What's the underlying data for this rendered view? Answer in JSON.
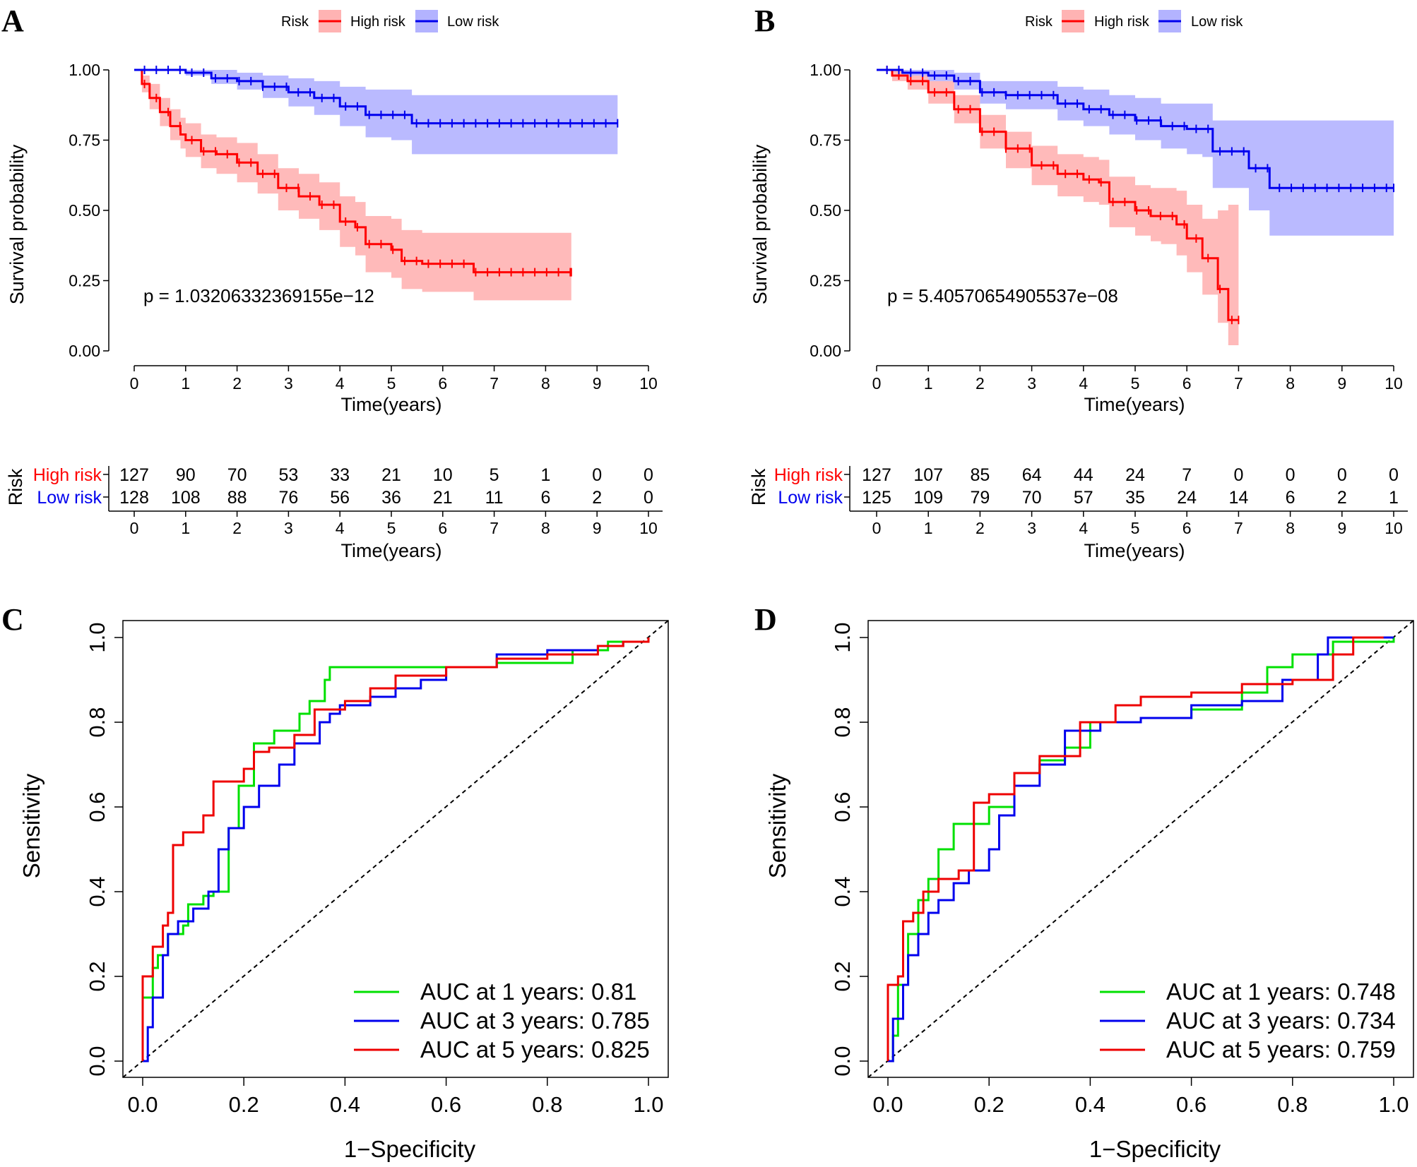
{
  "panels": {
    "A": {
      "letter": "A"
    },
    "B": {
      "letter": "B"
    },
    "C": {
      "letter": "C"
    },
    "D": {
      "letter": "D"
    }
  },
  "km_legend": {
    "title": "Risk",
    "high": "High risk",
    "low": "Low risk"
  },
  "km_axes": {
    "ylabel": "Survival probability",
    "xlabel": "Time(years)",
    "risk_ylabel": "Risk"
  },
  "roc_axes": {
    "xlabel": "1−Specificity",
    "ylabel": "Sensitivity"
  },
  "colors": {
    "high": "#ff0000",
    "low": "#0000ee",
    "high_band": "#ffb3b3",
    "low_band": "#b3b3ff",
    "green": "#00e000",
    "blue": "#0000ee",
    "red": "#ee0000"
  },
  "chart_data": [
    {
      "panel": "A",
      "type": "line",
      "subtype": "kaplan-meier",
      "xlabel": "Time(years)",
      "ylabel": "Survival probability",
      "xlim": [
        0,
        10
      ],
      "ylim": [
        0,
        1
      ],
      "x_ticks": [
        "0",
        "1",
        "2",
        "3",
        "4",
        "5",
        "6",
        "7",
        "8",
        "9",
        "10"
      ],
      "y_ticks": [
        "0.00",
        "0.25",
        "0.50",
        "0.75",
        "1.00"
      ],
      "pvalue": "p = 1.03206332369155e−12",
      "series": [
        {
          "name": "High risk",
          "color": "#ff0000",
          "x": [
            0,
            0.15,
            0.3,
            0.5,
            0.7,
            0.9,
            1.0,
            1.3,
            1.6,
            2.0,
            2.4,
            2.8,
            3.2,
            3.6,
            4.0,
            4.3,
            4.5,
            5.0,
            5.2,
            5.6,
            6.0,
            6.5,
            6.6,
            8.5
          ],
          "y": [
            1.0,
            0.95,
            0.9,
            0.85,
            0.8,
            0.77,
            0.75,
            0.71,
            0.7,
            0.67,
            0.63,
            0.58,
            0.55,
            0.52,
            0.46,
            0.44,
            0.38,
            0.36,
            0.32,
            0.31,
            0.31,
            0.31,
            0.28,
            0.28
          ],
          "lower": [
            1.0,
            0.92,
            0.86,
            0.8,
            0.75,
            0.72,
            0.69,
            0.65,
            0.63,
            0.6,
            0.56,
            0.5,
            0.47,
            0.43,
            0.37,
            0.34,
            0.28,
            0.26,
            0.22,
            0.21,
            0.21,
            0.21,
            0.18,
            0.18
          ],
          "upper": [
            1.0,
            0.98,
            0.95,
            0.9,
            0.86,
            0.83,
            0.81,
            0.77,
            0.76,
            0.74,
            0.7,
            0.65,
            0.63,
            0.6,
            0.55,
            0.53,
            0.48,
            0.47,
            0.43,
            0.42,
            0.42,
            0.42,
            0.42,
            0.42
          ]
        },
        {
          "name": "Low risk",
          "color": "#0000ee",
          "x": [
            0,
            0.5,
            1.0,
            1.5,
            2.0,
            2.5,
            3.0,
            3.5,
            4.0,
            4.5,
            5.0,
            5.4,
            6.0,
            7.0,
            8.0,
            9.0,
            9.4
          ],
          "y": [
            1.0,
            1.0,
            0.99,
            0.97,
            0.96,
            0.94,
            0.92,
            0.9,
            0.87,
            0.84,
            0.84,
            0.81,
            0.81,
            0.81,
            0.81,
            0.81,
            0.81
          ],
          "lower": [
            1.0,
            1.0,
            0.98,
            0.95,
            0.93,
            0.9,
            0.87,
            0.84,
            0.8,
            0.76,
            0.75,
            0.7,
            0.7,
            0.7,
            0.7,
            0.7,
            0.7
          ],
          "upper": [
            1.0,
            1.0,
            1.0,
            1.0,
            0.99,
            0.98,
            0.97,
            0.96,
            0.94,
            0.93,
            0.93,
            0.91,
            0.91,
            0.91,
            0.91,
            0.91,
            0.91
          ]
        }
      ],
      "risk_table": {
        "rows": [
          {
            "label": "High risk",
            "color": "#ff0000",
            "values": [
              "127",
              "90",
              "70",
              "53",
              "33",
              "21",
              "10",
              "5",
              "1",
              "0",
              "0"
            ]
          },
          {
            "label": "Low risk",
            "color": "#0000ee",
            "values": [
              "128",
              "108",
              "88",
              "76",
              "56",
              "36",
              "21",
              "11",
              "6",
              "2",
              "0"
            ]
          }
        ]
      }
    },
    {
      "panel": "B",
      "type": "line",
      "subtype": "kaplan-meier",
      "xlabel": "Time(years)",
      "ylabel": "Survival probability",
      "xlim": [
        0,
        10
      ],
      "ylim": [
        0,
        1
      ],
      "x_ticks": [
        "0",
        "1",
        "2",
        "3",
        "4",
        "5",
        "6",
        "7",
        "8",
        "9",
        "10"
      ],
      "y_ticks": [
        "0.00",
        "0.25",
        "0.50",
        "0.75",
        "1.00"
      ],
      "pvalue": "p = 5.40570654905537e−08",
      "series": [
        {
          "name": "High risk",
          "color": "#ff0000",
          "x": [
            0,
            0.3,
            0.6,
            1.0,
            1.5,
            2.0,
            2.5,
            3.0,
            3.5,
            4.0,
            4.3,
            4.5,
            5.0,
            5.3,
            5.5,
            5.8,
            6.0,
            6.3,
            6.6,
            6.8,
            7.0
          ],
          "y": [
            1.0,
            0.98,
            0.96,
            0.92,
            0.86,
            0.78,
            0.72,
            0.66,
            0.63,
            0.61,
            0.6,
            0.53,
            0.5,
            0.48,
            0.48,
            0.45,
            0.4,
            0.33,
            0.22,
            0.11,
            0.11
          ],
          "lower": [
            1.0,
            0.96,
            0.93,
            0.88,
            0.81,
            0.72,
            0.65,
            0.59,
            0.55,
            0.53,
            0.52,
            0.44,
            0.41,
            0.39,
            0.38,
            0.34,
            0.28,
            0.2,
            0.1,
            0.02,
            0.02
          ],
          "upper": [
            1.0,
            1.0,
            0.99,
            0.96,
            0.91,
            0.84,
            0.78,
            0.73,
            0.7,
            0.69,
            0.68,
            0.62,
            0.59,
            0.58,
            0.58,
            0.57,
            0.52,
            0.47,
            0.5,
            0.52,
            0.52
          ]
        },
        {
          "name": "Low risk",
          "color": "#0000ee",
          "x": [
            0,
            0.5,
            1.0,
            1.5,
            2.0,
            2.5,
            3.0,
            3.5,
            4.0,
            4.5,
            5.0,
            5.5,
            6.0,
            6.3,
            6.5,
            7.0,
            7.2,
            7.6,
            8.0,
            9.0,
            10.0
          ],
          "y": [
            1.0,
            0.99,
            0.98,
            0.96,
            0.92,
            0.91,
            0.91,
            0.88,
            0.86,
            0.84,
            0.82,
            0.8,
            0.79,
            0.79,
            0.71,
            0.71,
            0.65,
            0.58,
            0.58,
            0.58,
            0.58
          ],
          "lower": [
            1.0,
            0.98,
            0.96,
            0.93,
            0.88,
            0.86,
            0.86,
            0.82,
            0.8,
            0.77,
            0.75,
            0.72,
            0.7,
            0.69,
            0.58,
            0.58,
            0.5,
            0.41,
            0.41,
            0.41,
            0.41
          ],
          "upper": [
            1.0,
            1.0,
            1.0,
            0.99,
            0.96,
            0.96,
            0.96,
            0.94,
            0.93,
            0.91,
            0.9,
            0.88,
            0.88,
            0.88,
            0.82,
            0.82,
            0.82,
            0.82,
            0.82,
            0.82,
            0.82
          ]
        }
      ],
      "risk_table": {
        "rows": [
          {
            "label": "High risk",
            "color": "#ff0000",
            "values": [
              "127",
              "107",
              "85",
              "64",
              "44",
              "24",
              "7",
              "0",
              "0",
              "0",
              "0"
            ]
          },
          {
            "label": "Low risk",
            "color": "#0000ee",
            "values": [
              "125",
              "109",
              "79",
              "70",
              "57",
              "35",
              "24",
              "14",
              "6",
              "2",
              "1"
            ]
          }
        ]
      }
    },
    {
      "panel": "C",
      "type": "line",
      "subtype": "roc",
      "xlabel": "1−Specificity",
      "ylabel": "Sensitivity",
      "xlim": [
        0,
        1
      ],
      "ylim": [
        0,
        1
      ],
      "x_ticks": [
        "0.0",
        "0.2",
        "0.4",
        "0.6",
        "0.8",
        "1.0"
      ],
      "y_ticks": [
        "0.0",
        "0.2",
        "0.4",
        "0.6",
        "0.8",
        "1.0"
      ],
      "legend": [
        "AUC at 1 years: 0.81",
        "AUC at 3 years: 0.785",
        "AUC at 5 years: 0.825"
      ],
      "series": [
        {
          "name": "AUC at 1 years: 0.81",
          "auc": 0.81,
          "color": "#00e000",
          "x": [
            0,
            0,
            0.02,
            0.03,
            0.05,
            0.08,
            0.09,
            0.12,
            0.14,
            0.17,
            0.19,
            0.22,
            0.26,
            0.31,
            0.33,
            0.36,
            0.37,
            0.45,
            0.55,
            0.7,
            0.85,
            0.92,
            1.0
          ],
          "y": [
            0,
            0.15,
            0.22,
            0.25,
            0.3,
            0.32,
            0.37,
            0.39,
            0.4,
            0.55,
            0.65,
            0.75,
            0.78,
            0.82,
            0.85,
            0.9,
            0.93,
            0.93,
            0.93,
            0.94,
            0.97,
            0.99,
            1.0
          ]
        },
        {
          "name": "AUC at 3 years: 0.785",
          "auc": 0.785,
          "color": "#0000ee",
          "x": [
            0,
            0.01,
            0.02,
            0.04,
            0.05,
            0.07,
            0.1,
            0.13,
            0.15,
            0.17,
            0.2,
            0.23,
            0.27,
            0.3,
            0.35,
            0.37,
            0.39,
            0.45,
            0.5,
            0.55,
            0.6,
            0.7,
            0.8,
            0.9,
            0.95,
            1.0
          ],
          "y": [
            0,
            0.08,
            0.15,
            0.25,
            0.3,
            0.33,
            0.36,
            0.4,
            0.5,
            0.55,
            0.6,
            0.65,
            0.7,
            0.75,
            0.8,
            0.82,
            0.84,
            0.86,
            0.88,
            0.9,
            0.93,
            0.96,
            0.97,
            0.98,
            0.99,
            1.0
          ]
        },
        {
          "name": "AUC at 5 years: 0.825",
          "auc": 0.825,
          "color": "#ee0000",
          "x": [
            0,
            0,
            0.02,
            0.04,
            0.05,
            0.06,
            0.08,
            0.12,
            0.14,
            0.2,
            0.22,
            0.25,
            0.3,
            0.34,
            0.4,
            0.45,
            0.5,
            0.6,
            0.7,
            0.8,
            0.9,
            0.95,
            1.0
          ],
          "y": [
            0,
            0.2,
            0.27,
            0.32,
            0.35,
            0.51,
            0.54,
            0.58,
            0.66,
            0.69,
            0.73,
            0.74,
            0.77,
            0.83,
            0.85,
            0.88,
            0.91,
            0.93,
            0.95,
            0.96,
            0.98,
            0.99,
            1.0
          ]
        }
      ]
    },
    {
      "panel": "D",
      "type": "line",
      "subtype": "roc",
      "xlabel": "1−Specificity",
      "ylabel": "Sensitivity",
      "xlim": [
        0,
        1
      ],
      "ylim": [
        0,
        1
      ],
      "x_ticks": [
        "0.0",
        "0.2",
        "0.4",
        "0.6",
        "0.8",
        "1.0"
      ],
      "y_ticks": [
        "0.0",
        "0.2",
        "0.4",
        "0.6",
        "0.8",
        "1.0"
      ],
      "legend": [
        "AUC at 1 years: 0.748",
        "AUC at 3 years: 0.734",
        "AUC at 5 years: 0.759"
      ],
      "series": [
        {
          "name": "AUC at 1 years: 0.748",
          "auc": 0.748,
          "color": "#00e000",
          "x": [
            0,
            0.01,
            0.02,
            0.04,
            0.06,
            0.08,
            0.1,
            0.13,
            0.15,
            0.2,
            0.25,
            0.3,
            0.35,
            0.4,
            0.5,
            0.6,
            0.7,
            0.75,
            0.8,
            0.88,
            1.0
          ],
          "y": [
            0,
            0.06,
            0.18,
            0.3,
            0.38,
            0.43,
            0.5,
            0.56,
            0.56,
            0.6,
            0.68,
            0.71,
            0.74,
            0.8,
            0.81,
            0.83,
            0.87,
            0.93,
            0.96,
            0.99,
            1.0
          ]
        },
        {
          "name": "AUC at 3 years: 0.734",
          "auc": 0.734,
          "color": "#0000ee",
          "x": [
            0,
            0.01,
            0.03,
            0.04,
            0.06,
            0.08,
            0.1,
            0.13,
            0.16,
            0.2,
            0.22,
            0.25,
            0.3,
            0.35,
            0.42,
            0.5,
            0.6,
            0.7,
            0.78,
            0.85,
            0.87,
            1.0
          ],
          "y": [
            0,
            0.1,
            0.18,
            0.25,
            0.3,
            0.35,
            0.38,
            0.42,
            0.45,
            0.5,
            0.58,
            0.65,
            0.7,
            0.78,
            0.8,
            0.81,
            0.84,
            0.85,
            0.9,
            0.96,
            1.0,
            1.0
          ]
        },
        {
          "name": "AUC at 5 years: 0.759",
          "auc": 0.759,
          "color": "#ee0000",
          "x": [
            0,
            0,
            0.02,
            0.03,
            0.05,
            0.07,
            0.1,
            0.14,
            0.16,
            0.17,
            0.2,
            0.25,
            0.3,
            0.38,
            0.45,
            0.5,
            0.6,
            0.7,
            0.8,
            0.88,
            0.92,
            0.98
          ],
          "y": [
            0,
            0.18,
            0.2,
            0.33,
            0.35,
            0.4,
            0.43,
            0.45,
            0.45,
            0.61,
            0.63,
            0.68,
            0.72,
            0.8,
            0.84,
            0.86,
            0.87,
            0.89,
            0.9,
            0.96,
            1.0,
            1.0
          ]
        }
      ]
    }
  ]
}
